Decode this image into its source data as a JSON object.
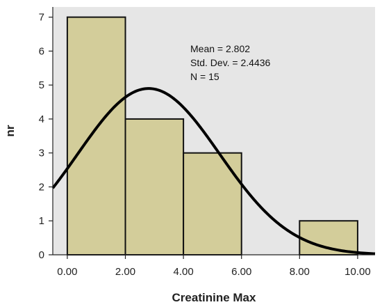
{
  "chart_data": {
    "type": "bar",
    "subtype": "histogram",
    "bins": [
      {
        "start": 0,
        "end": 2,
        "count": 7
      },
      {
        "start": 2,
        "end": 4,
        "count": 4
      },
      {
        "start": 4,
        "end": 6,
        "count": 3
      },
      {
        "start": 6,
        "end": 8,
        "count": 0
      },
      {
        "start": 8,
        "end": 10,
        "count": 1
      }
    ],
    "xlabel": "Creatinine Max",
    "ylabel": "nr",
    "xlim": [
      -0.5,
      10.6
    ],
    "ylim": [
      0,
      7.3
    ],
    "xticks": [
      "0.00",
      "2.00",
      "4.00",
      "6.00",
      "8.00",
      "10.00"
    ],
    "xtick_values": [
      0,
      2,
      4,
      6,
      8,
      10
    ],
    "yticks": [
      "0",
      "1",
      "2",
      "3",
      "4",
      "5",
      "6",
      "7"
    ],
    "ytick_values": [
      0,
      1,
      2,
      3,
      4,
      5,
      6,
      7
    ],
    "stats": {
      "mean_label": "Mean = 2.802",
      "sd_label": "Std. Dev. = 2.4436",
      "n_label": "N = 15"
    },
    "normal_curve": {
      "mean": 2.802,
      "sd": 2.4436,
      "n": 15,
      "bin_width": 2
    },
    "grid": false,
    "colors": {
      "plot_background": "#e6e6e6",
      "bar_fill": "#d3cd9a",
      "bar_stroke": "#111111",
      "curve": "#000000"
    }
  }
}
